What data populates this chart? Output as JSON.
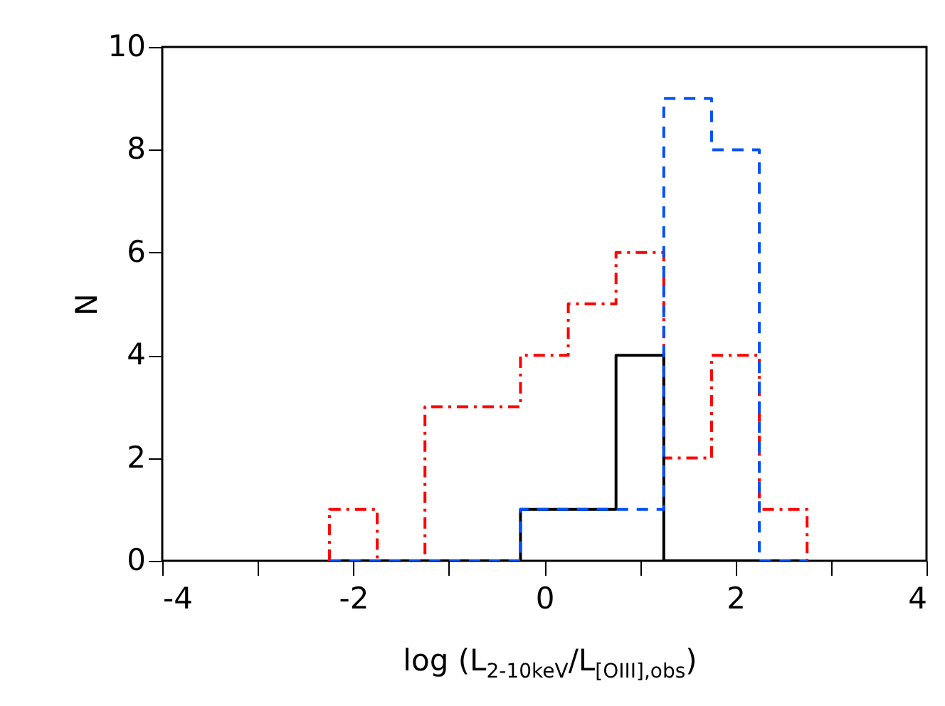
{
  "chart_data": {
    "type": "histogram",
    "xlabel": "log (L$_{2-10keV}$/L$_{[OIII],obs}$)",
    "ylabel": "N",
    "xlim": [
      -4,
      4
    ],
    "ylim": [
      0,
      10
    ],
    "xticks": [
      -4,
      {
        "value": -3,
        "label": null
      },
      -2,
      {
        "value": -1,
        "label": null
      },
      0,
      {
        "value": 1,
        "label": null
      },
      2,
      {
        "value": 3,
        "label": null
      },
      4
    ],
    "yticks": [
      0,
      2,
      4,
      6,
      8,
      10
    ],
    "bins": [
      -2.25,
      -1.75,
      -1.25,
      -0.75,
      -0.25,
      0.25,
      0.75,
      1.25,
      1.75,
      2.25,
      2.75
    ],
    "series": [
      {
        "color": "#ff0000",
        "line_style": "dashdot",
        "values": [
          1,
          0,
          3,
          3,
          4,
          5,
          6,
          2,
          4,
          1
        ]
      },
      {
        "color": "#000000",
        "line_style": "solid",
        "values": [
          0,
          0,
          0,
          0,
          1,
          1,
          4,
          0,
          0,
          0
        ]
      },
      {
        "color": "#0050ff",
        "line_style": "dashed",
        "values": [
          0,
          0,
          0,
          0,
          1,
          1,
          1,
          9,
          8,
          0
        ]
      }
    ]
  }
}
